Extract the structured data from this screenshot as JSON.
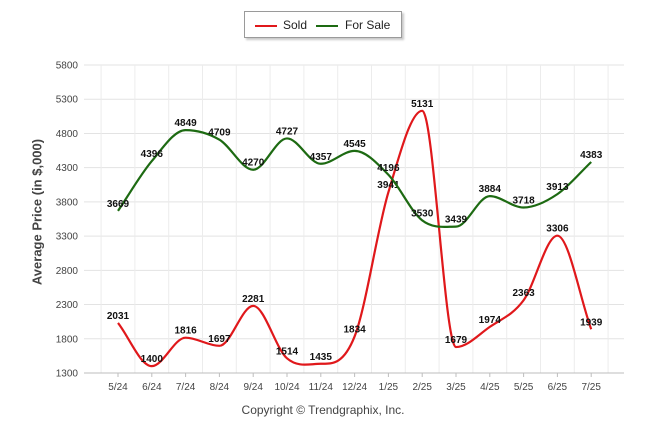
{
  "chart_data": {
    "type": "line",
    "categories": [
      "5/24",
      "6/24",
      "7/24",
      "8/24",
      "9/24",
      "10/24",
      "11/24",
      "12/24",
      "1/25",
      "2/25",
      "3/25",
      "4/25",
      "5/25",
      "6/25",
      "7/25"
    ],
    "series": [
      {
        "name": "Sold",
        "color": "#e0181b",
        "values": [
          2031,
          1400,
          1816,
          1697,
          2281,
          1514,
          1435,
          1834,
          3941,
          5131,
          1679,
          1974,
          2363,
          3306,
          1939
        ]
      },
      {
        "name": "For Sale",
        "color": "#1d6a12",
        "values": [
          3669,
          4396,
          4849,
          4709,
          4270,
          4727,
          4357,
          4545,
          4196,
          3530,
          3439,
          3884,
          3718,
          3913,
          4383
        ]
      }
    ],
    "ylabel": "Average Price (in $,000)",
    "xlabel": "",
    "ylim": [
      1300,
      5800
    ],
    "yticks": [
      1300,
      1800,
      2300,
      2800,
      3300,
      3800,
      4300,
      4800,
      5300,
      5800
    ],
    "grid": true,
    "legend_position": "top-center"
  },
  "legend": {
    "items": [
      "Sold",
      "For Sale"
    ]
  },
  "credit": "Copyright © Trendgraphix, Inc."
}
